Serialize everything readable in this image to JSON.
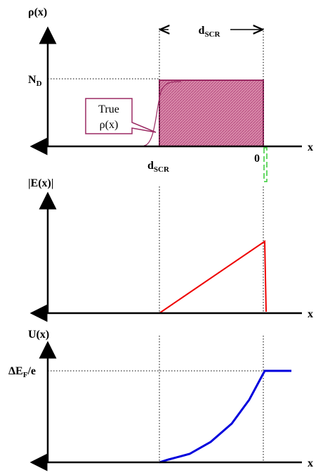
{
  "panels": [
    {
      "y_label": "ρ(x)",
      "x_label": "x",
      "width_label": {
        "main": "d",
        "sub": "SCR"
      },
      "level_label": {
        "main": "N",
        "sub": "D"
      },
      "callout": [
        "True",
        "ρ(x)"
      ],
      "edge_label": {
        "main": "d",
        "sub": "SCR"
      },
      "origin_label": "0"
    },
    {
      "y_label": "|E(x)|",
      "x_label": "x"
    },
    {
      "y_label": "U(x)",
      "x_label": "x",
      "level_label": {
        "main": "ΔE",
        "sub": "F",
        "tail": "/e"
      }
    }
  ]
}
